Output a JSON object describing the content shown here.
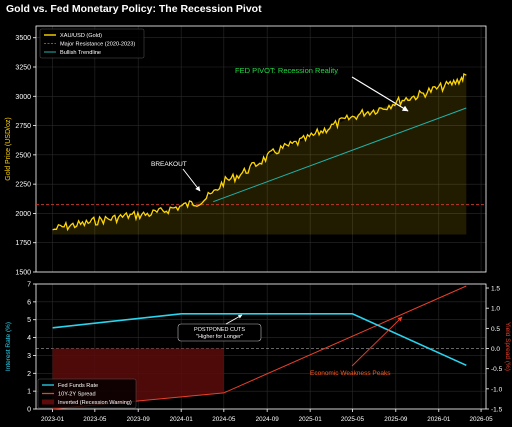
{
  "title": "Gold vs. Fed Monetary Policy: The Recession Pivot",
  "colors": {
    "background": "#000000",
    "gold": "#ffd700",
    "resistance": "#c0392b",
    "trendline": "#20b2aa",
    "fed_funds": "#2ad4ee",
    "spread": "#e8402a",
    "inverted_fill": "#5c0a0a",
    "pivot_text": "#22dd44",
    "weakness_text": "#ff5a1f",
    "axis": "#ffffff",
    "ylabel_top": "#ffd700",
    "ylabel_bottom_left": "#2ad4ee",
    "ylabel_bottom_right": "#e8402a"
  },
  "chart_data": [
    {
      "type": "line",
      "title": "Gold vs. Fed Monetary Policy: The Recession Pivot",
      "xlabel": "",
      "ylabel": "Gold Price (USD/oz)",
      "ylim": [
        1500,
        3600
      ],
      "x_domain": [
        "2022-11-15",
        "2026-05-15"
      ],
      "yticks": [
        1500,
        1750,
        2000,
        2250,
        2500,
        2750,
        3000,
        3250,
        3500
      ],
      "grid": true,
      "legend_position": "top-left",
      "series": [
        {
          "name": "XAU/USD (Gold)",
          "style": "line",
          "color": "#ffd700",
          "x": [
            "2023-01-01",
            "2023-02-01",
            "2023-03-01",
            "2023-04-01",
            "2023-05-01",
            "2023-06-01",
            "2023-07-01",
            "2023-08-01",
            "2023-09-01",
            "2023-10-01",
            "2023-11-01",
            "2023-12-01",
            "2024-01-01",
            "2024-02-01",
            "2024-03-01",
            "2024-04-01",
            "2024-05-01",
            "2024-06-01",
            "2024-07-01",
            "2024-08-01",
            "2024-09-01",
            "2024-10-01",
            "2024-11-01",
            "2024-12-01",
            "2025-01-01",
            "2025-02-01",
            "2025-03-01",
            "2025-04-01",
            "2025-05-01",
            "2025-06-01",
            "2025-07-01",
            "2025-08-01",
            "2025-09-01",
            "2025-10-01",
            "2025-11-01",
            "2025-12-01",
            "2026-01-01",
            "2026-02-01",
            "2026-03-01",
            "2026-03-20"
          ],
          "y": [
            1860,
            1885,
            1900,
            1910,
            1935,
            1950,
            1960,
            1980,
            1985,
            1995,
            2010,
            2040,
            2060,
            2085,
            2110,
            2170,
            2270,
            2310,
            2360,
            2420,
            2480,
            2540,
            2575,
            2610,
            2650,
            2700,
            2740,
            2785,
            2820,
            2860,
            2880,
            2910,
            2950,
            2980,
            3005,
            3040,
            3070,
            3100,
            3140,
            3180
          ]
        },
        {
          "name": "Major Resistance (2020-2023)",
          "style": "dashed-hline",
          "color": "#c0392b",
          "y": 2075
        },
        {
          "name": "Bullish Trendline",
          "style": "line",
          "color": "#20b2aa",
          "x": [
            "2024-04-01",
            "2026-03-20"
          ],
          "y": [
            2100,
            2900
          ]
        }
      ],
      "annotations": [
        {
          "text": "BREAKOUT",
          "x": "2024-01-05",
          "y": 2130,
          "color": "#ffffff"
        },
        {
          "text": "FED PIVOT: Recession Reality",
          "x": "2025-08-20",
          "y": 2870,
          "color": "#22dd44"
        }
      ]
    },
    {
      "type": "line",
      "xlabel": "",
      "ylabel": "Interest Rate (%)",
      "ylabel_right": "Yield Spread (%)",
      "ylim": [
        0,
        7
      ],
      "ylim_right": [
        -1.5,
        1.6
      ],
      "yticks": [
        0,
        1,
        2,
        3,
        4,
        5,
        6,
        7
      ],
      "yticks_right": [
        -1.5,
        -1.0,
        -0.5,
        0.0,
        0.5,
        1.0,
        1.5
      ],
      "yticklabels_right": [
        "-1.5",
        "-1.0",
        "-0.5",
        "0.0",
        "0.5",
        "1.0",
        "1.5"
      ],
      "xticks": [
        "2023-01",
        "2023-05",
        "2023-09",
        "2024-01",
        "2024-05",
        "2024-09",
        "2025-01",
        "2025-05",
        "2025-09",
        "2026-01",
        "2026-05"
      ],
      "grid": true,
      "legend_position": "lower-left",
      "series": [
        {
          "name": "Fed Funds Rate",
          "axis": "left",
          "color": "#2ad4ee",
          "x": [
            "2023-01-01",
            "2024-01-01",
            "2025-05-01",
            "2026-03-20"
          ],
          "y": [
            4.55,
            5.33,
            5.33,
            2.45
          ]
        },
        {
          "name": "10Y-2Y Spread",
          "axis": "right",
          "color": "#e8402a",
          "x": [
            "2023-01-01",
            "2024-05-01",
            "2026-03-20"
          ],
          "y": [
            -1.5,
            -1.1,
            1.55
          ]
        }
      ],
      "regions": [
        {
          "name": "Inverted (Recession Warning)",
          "color": "#5c0a0a",
          "from": "2023-01-01",
          "to": "2024-05-01"
        }
      ],
      "annotations": [
        {
          "text": "POSTPONED CUTS\n\"Higher for Longer\"",
          "x": "2024-02-20",
          "y": 4.35,
          "color": "#ffffff"
        },
        {
          "text": "Economic Weakness Peaks",
          "x": "2025-05-25",
          "y": -0.55,
          "color": "#ff5a1f"
        }
      ]
    }
  ]
}
